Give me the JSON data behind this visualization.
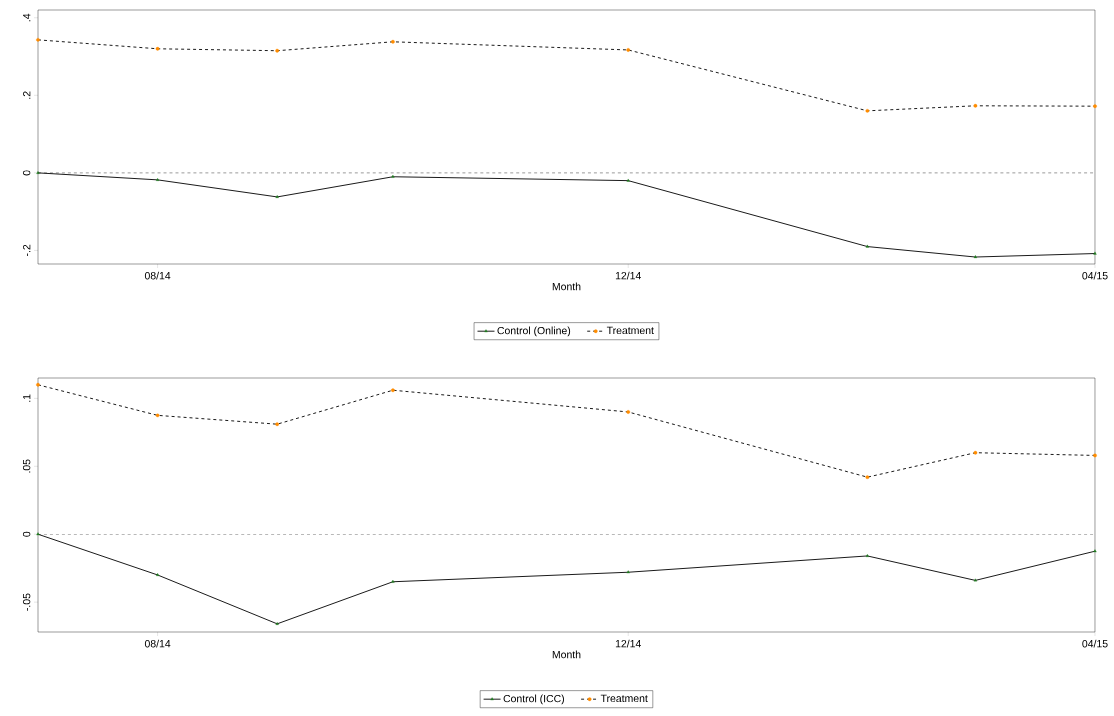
{
  "chart_data": [
    {
      "type": "line",
      "xlabel": "Month",
      "x": [
        "2014-07",
        "2014-08",
        "2014-09",
        "2014-10",
        "2014-12",
        "2015-02",
        "2015-03",
        "2015-04"
      ],
      "series": [
        {
          "name": "Control (Online)",
          "color": "#1e7b1e",
          "marker": "triangle",
          "line_style": "solid",
          "values": [
            0,
            -0.018,
            -0.062,
            -0.01,
            -0.02,
            -0.19,
            -0.217,
            -0.208
          ]
        },
        {
          "name": "Treatment",
          "color": "#ff8c00",
          "marker": "circle",
          "line_style": "dashed",
          "values": [
            0.343,
            0.32,
            0.315,
            0.338,
            0.317,
            0.16,
            0.173,
            0.172
          ]
        }
      ],
      "xlim": [
        "2014-07",
        "2015-04"
      ],
      "ylim": [
        -0.235,
        0.42
      ],
      "xticks": [
        {
          "value": "2014-08",
          "label": "08/14"
        },
        {
          "value": "2014-12",
          "label": "12/14"
        },
        {
          "value": "2015-04",
          "label": "04/15"
        }
      ],
      "yticks": [
        {
          "value": -0.2,
          "label": "-.2"
        },
        0,
        {
          "value": 0.2,
          "label": ".2"
        },
        {
          "value": 0.4,
          "label": ".4"
        }
      ],
      "ref_lines": [
        {
          "axis": "y",
          "value": 0,
          "line_style": "dashed"
        }
      ],
      "legend": "bottom",
      "grid": false
    },
    {
      "type": "line",
      "xlabel": "Month",
      "x": [
        "2014-07",
        "2014-08",
        "2014-09",
        "2014-10",
        "2014-12",
        "2015-02",
        "2015-03",
        "2015-04"
      ],
      "series": [
        {
          "name": "Control (ICC)",
          "color": "#1e7b1e",
          "marker": "triangle",
          "line_style": "solid",
          "values": [
            0,
            -0.03,
            -0.066,
            -0.035,
            -0.028,
            -0.016,
            -0.034,
            -0.0125
          ]
        },
        {
          "name": "Treatment",
          "color": "#ff8c00",
          "marker": "circle",
          "line_style": "dashed",
          "values": [
            0.11,
            0.0875,
            0.081,
            0.106,
            0.09,
            0.042,
            0.06,
            0.058
          ]
        }
      ],
      "xlim": [
        "2014-07",
        "2015-04"
      ],
      "ylim": [
        -0.072,
        0.115
      ],
      "xticks": [
        {
          "value": "2014-08",
          "label": "08/14"
        },
        {
          "value": "2014-12",
          "label": "12/14"
        },
        {
          "value": "2015-04",
          "label": "04/15"
        }
      ],
      "yticks": [
        {
          "value": -0.05,
          "label": "-.05"
        },
        0,
        {
          "value": 0.05,
          "label": ".05"
        },
        {
          "value": 0.1,
          "label": ".1"
        }
      ],
      "ref_lines": [
        {
          "axis": "y",
          "value": 0,
          "line_style": "dashed"
        }
      ],
      "legend": "bottom",
      "grid": false
    }
  ]
}
